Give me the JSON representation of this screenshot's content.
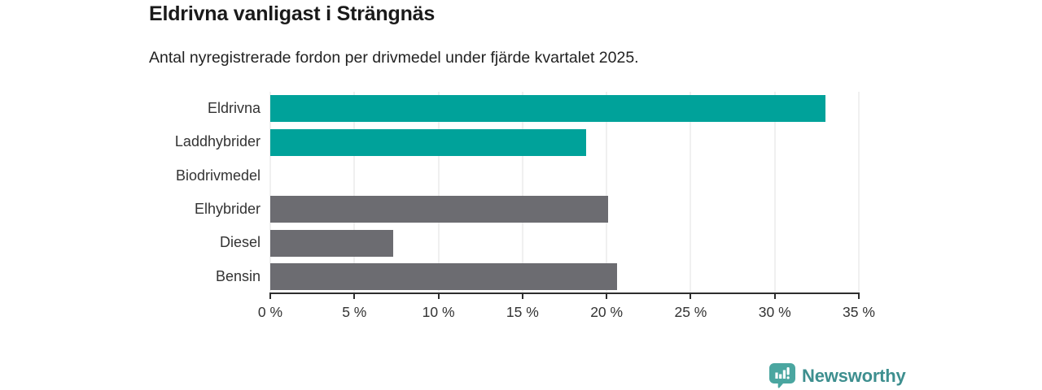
{
  "title": "Eldrivna vanligast i Strängnäs",
  "subtitle": "Antal nyregistrerade fordon per drivmedel under fjärde kvartalet 2025.",
  "branding": {
    "logo_text": "Newsworthy"
  },
  "palette": {
    "teal": "#00a29a",
    "gray": "#6c6c71",
    "grid": "#e2e2e2",
    "axis": "#2d2d2d",
    "label_text": "#333333",
    "logo_icon": "#4aa6a0",
    "logo_text_color": "#3e8f8f"
  },
  "chart_data": {
    "type": "bar",
    "orientation": "horizontal",
    "title": "Eldrivna vanligast i Strängnäs",
    "subtitle": "Antal nyregistrerade fordon per drivmedel under fjärde kvartalet 2025.",
    "categories": [
      "Eldrivna",
      "Laddhybrider",
      "Biodrivmedel",
      "Elhybrider",
      "Diesel",
      "Bensin"
    ],
    "values": [
      33.0,
      18.8,
      0,
      20.1,
      7.3,
      20.6
    ],
    "unit": "%",
    "series_colors": [
      "#00a29a",
      "#00a29a",
      "#00a29a",
      "#6c6c71",
      "#6c6c71",
      "#6c6c71"
    ],
    "xlim": [
      0,
      35
    ],
    "tick_values": [
      0,
      5,
      10,
      15,
      20,
      25,
      30,
      35
    ],
    "tick_labels": [
      "0 %",
      "5 %",
      "10 %",
      "15 %",
      "20 %",
      "25 %",
      "30 %",
      "35 %"
    ],
    "grid": true,
    "legend": false
  }
}
